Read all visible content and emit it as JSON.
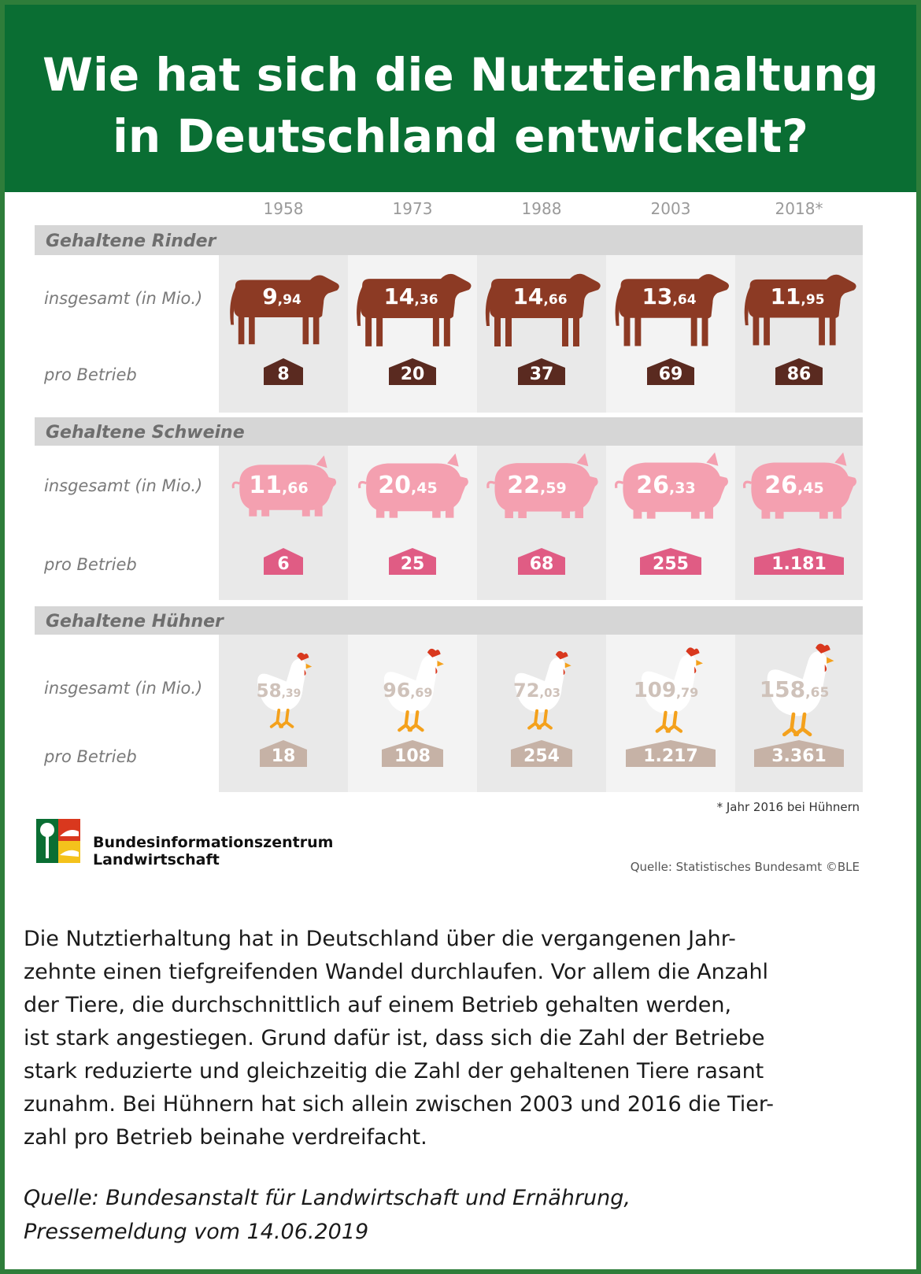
{
  "header": {
    "title_line1": "Wie hat sich die Nutztierhaltung",
    "title_line2": "in Deutschland entwickelt?"
  },
  "chart_data": {
    "type": "table",
    "years": [
      "1958",
      "1973",
      "1988",
      "2003",
      "2018*"
    ],
    "sections": [
      {
        "title": "Gehaltene Rinder",
        "animal": "cattle",
        "color": "#8c3a24",
        "badge_color": "#5a2a20",
        "total_label": "insgesamt (in Mio.)",
        "farm_label": "pro Betrieb",
        "totals": [
          9.94,
          14.36,
          14.66,
          13.64,
          11.95
        ],
        "totals_int": [
          "9",
          "14",
          "14",
          "13",
          "11"
        ],
        "totals_dec": [
          "94",
          "36",
          "66",
          "64",
          "95"
        ],
        "per_farm": [
          "8",
          "20",
          "37",
          "69",
          "86"
        ]
      },
      {
        "title": "Gehaltene Schweine",
        "animal": "pig",
        "color": "#f4a0b0",
        "badge_color": "#e05c84",
        "total_label": "insgesamt (in Mio.)",
        "farm_label": "pro Betrieb",
        "totals": [
          11.66,
          20.45,
          22.59,
          26.33,
          26.45
        ],
        "totals_int": [
          "11",
          "20",
          "22",
          "26",
          "26"
        ],
        "totals_dec": [
          "66",
          "45",
          "59",
          "33",
          "45"
        ],
        "per_farm": [
          "6",
          "25",
          "68",
          "255",
          "1.181"
        ]
      },
      {
        "title": "Gehaltene Hühner",
        "animal": "chicken",
        "color": "#ffffff",
        "badge_color": "#c6b2a6",
        "total_label": "insgesamt (in Mio.)",
        "farm_label": "pro Betrieb",
        "totals": [
          58.39,
          96.69,
          72.03,
          109.79,
          158.65
        ],
        "totals_int": [
          "58",
          "96",
          "72",
          "109",
          "158"
        ],
        "totals_dec": [
          "39",
          "69",
          "03",
          "79",
          "65"
        ],
        "per_farm": [
          "18",
          "108",
          "254",
          "1.217",
          "3.361"
        ]
      }
    ],
    "footnote": "* Jahr 2016 bei Hühnern",
    "source": "Quelle: Statistisches Bundesamt ©BLE"
  },
  "logo": {
    "line1": "Bundesinformationszentrum",
    "line2": "Landwirtschaft"
  },
  "body": {
    "lines": [
      "Die Nutztierhaltung hat in Deutschland über die vergangenen Jahr-",
      "zehnte einen tiefgreifenden Wandel durchlaufen. Vor allem die Anzahl",
      "der Tiere, die durchschnittlich auf einem Betrieb gehalten werden,",
      "ist stark angestiegen. Grund dafür ist, dass sich die Zahl der Betriebe",
      "stark reduzierte und gleichzeitig die Zahl der gehaltenen Tiere rasant",
      "zunahm. Bei Hühnern hat sich allein zwischen 2003 und 2016 die Tier-",
      "zahl pro Betrieb beinahe verdreifacht."
    ]
  },
  "quote": {
    "line1": "Quelle: Bundesanstalt für Landwirtschaft und Ernährung,",
    "line2": "Pressemeldung vom 14.06.2019"
  }
}
